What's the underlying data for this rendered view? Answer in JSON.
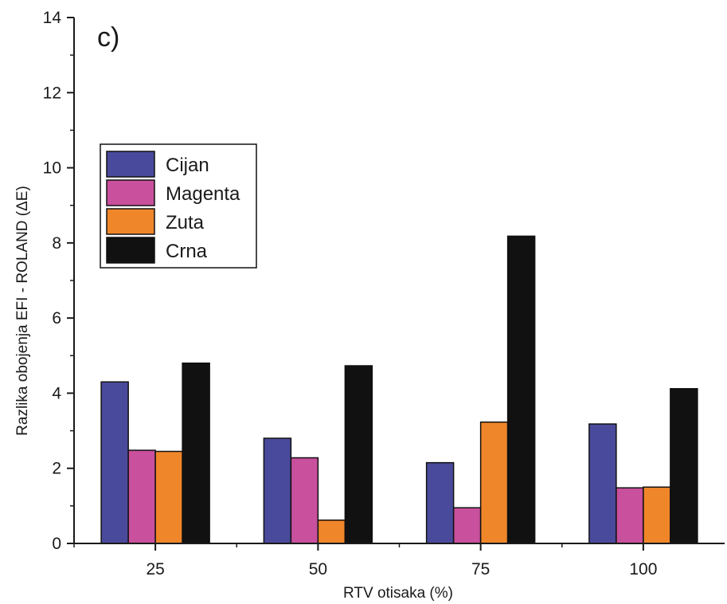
{
  "chart_data": {
    "type": "bar",
    "panel_label": "c)",
    "categories": [
      "25",
      "50",
      "75",
      "100"
    ],
    "series": [
      {
        "name": "Cijan",
        "color": "#4a4a9c",
        "values": [
          4.3,
          2.8,
          2.15,
          3.18
        ]
      },
      {
        "name": "Magenta",
        "color": "#c8509c",
        "values": [
          2.48,
          2.28,
          0.95,
          1.48
        ]
      },
      {
        "name": "Zuta",
        "color": "#f0862a",
        "values": [
          2.45,
          0.62,
          3.23,
          1.5
        ]
      },
      {
        "name": "Crna",
        "color": "#111111",
        "values": [
          4.8,
          4.73,
          8.18,
          4.12
        ]
      }
    ],
    "xlabel": "RTV otisaka (%)",
    "ylabel": "Razlika obojenja EFI - ROLAND (ΔE)",
    "ylim": [
      0,
      14
    ],
    "yticks": [
      "0",
      "2",
      "4",
      "6",
      "8",
      "10",
      "12",
      "14"
    ],
    "grid": false,
    "legend_position": "upper-left"
  }
}
